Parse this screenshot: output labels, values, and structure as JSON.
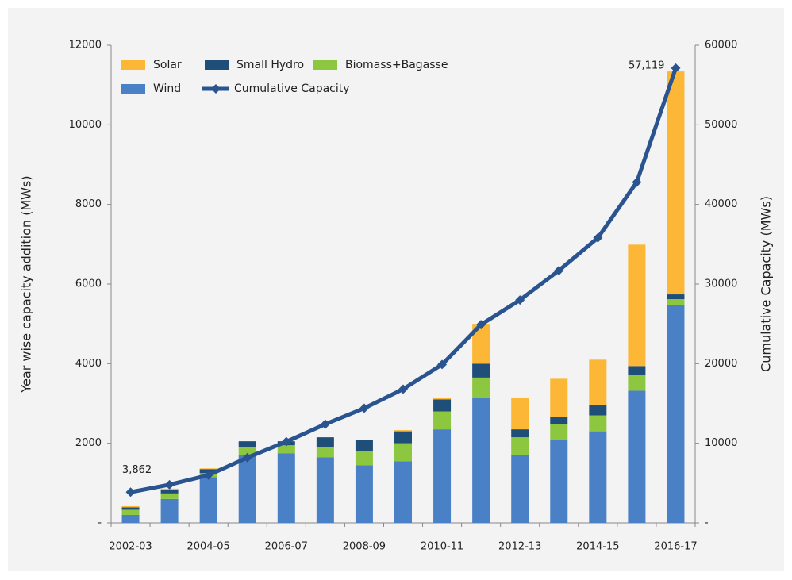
{
  "chart_data": {
    "type": "bar",
    "stacked": true,
    "categories": [
      "2002-03",
      null,
      "2004-05",
      null,
      "2006-07",
      null,
      "2008-09",
      null,
      "2010-11",
      null,
      "2012-13",
      null,
      "2014-15",
      null,
      "2016-17"
    ],
    "series": [
      {
        "name": "Wind",
        "type": "bar",
        "color": "#4a80c6",
        "values": [
          200,
          600,
          1150,
          1700,
          1750,
          1650,
          1450,
          1550,
          2350,
          3150,
          1700,
          2080,
          2300,
          3320,
          5470
        ]
      },
      {
        "name": "Biomass+Bagasse",
        "type": "bar",
        "color": "#8dc63f",
        "values": [
          130,
          140,
          100,
          200,
          200,
          250,
          350,
          450,
          450,
          500,
          450,
          400,
          400,
          400,
          150
        ]
      },
      {
        "name": "Small Hydro",
        "type": "bar",
        "color": "#1f4e79",
        "values": [
          60,
          100,
          100,
          150,
          100,
          250,
          280,
          300,
          300,
          350,
          200,
          180,
          250,
          220,
          120
        ]
      },
      {
        "name": "Solar",
        "type": "bar",
        "color": "#fbb735",
        "values": [
          30,
          20,
          20,
          0,
          0,
          0,
          0,
          30,
          50,
          1000,
          800,
          960,
          1150,
          3050,
          5600
        ]
      },
      {
        "name": "Cumulative Capacity",
        "type": "line",
        "axis": "y2",
        "color": "#2a5490",
        "values": [
          3862,
          4800,
          6000,
          8200,
          10200,
          12400,
          14400,
          16800,
          19900,
          24900,
          28000,
          31700,
          35800,
          42800,
          57119
        ],
        "value_labels": [
          "3,862",
          null,
          null,
          null,
          null,
          null,
          null,
          null,
          null,
          null,
          null,
          null,
          null,
          null,
          "57,119"
        ]
      }
    ],
    "y_label": "Year wise capacity addition (MWs)",
    "y2_label": "Cumulative Capacity (MWs)",
    "ylim": [
      0,
      12000
    ],
    "yticks": [
      {
        "value": 0,
        "label": "-"
      },
      2000,
      4000,
      6000,
      8000,
      10000,
      12000
    ],
    "y2lim": [
      0,
      60000
    ],
    "y2ticks": [
      {
        "value": 0,
        "label": "-"
      },
      10000,
      20000,
      30000,
      40000,
      50000,
      60000
    ],
    "legend": "top-left"
  }
}
